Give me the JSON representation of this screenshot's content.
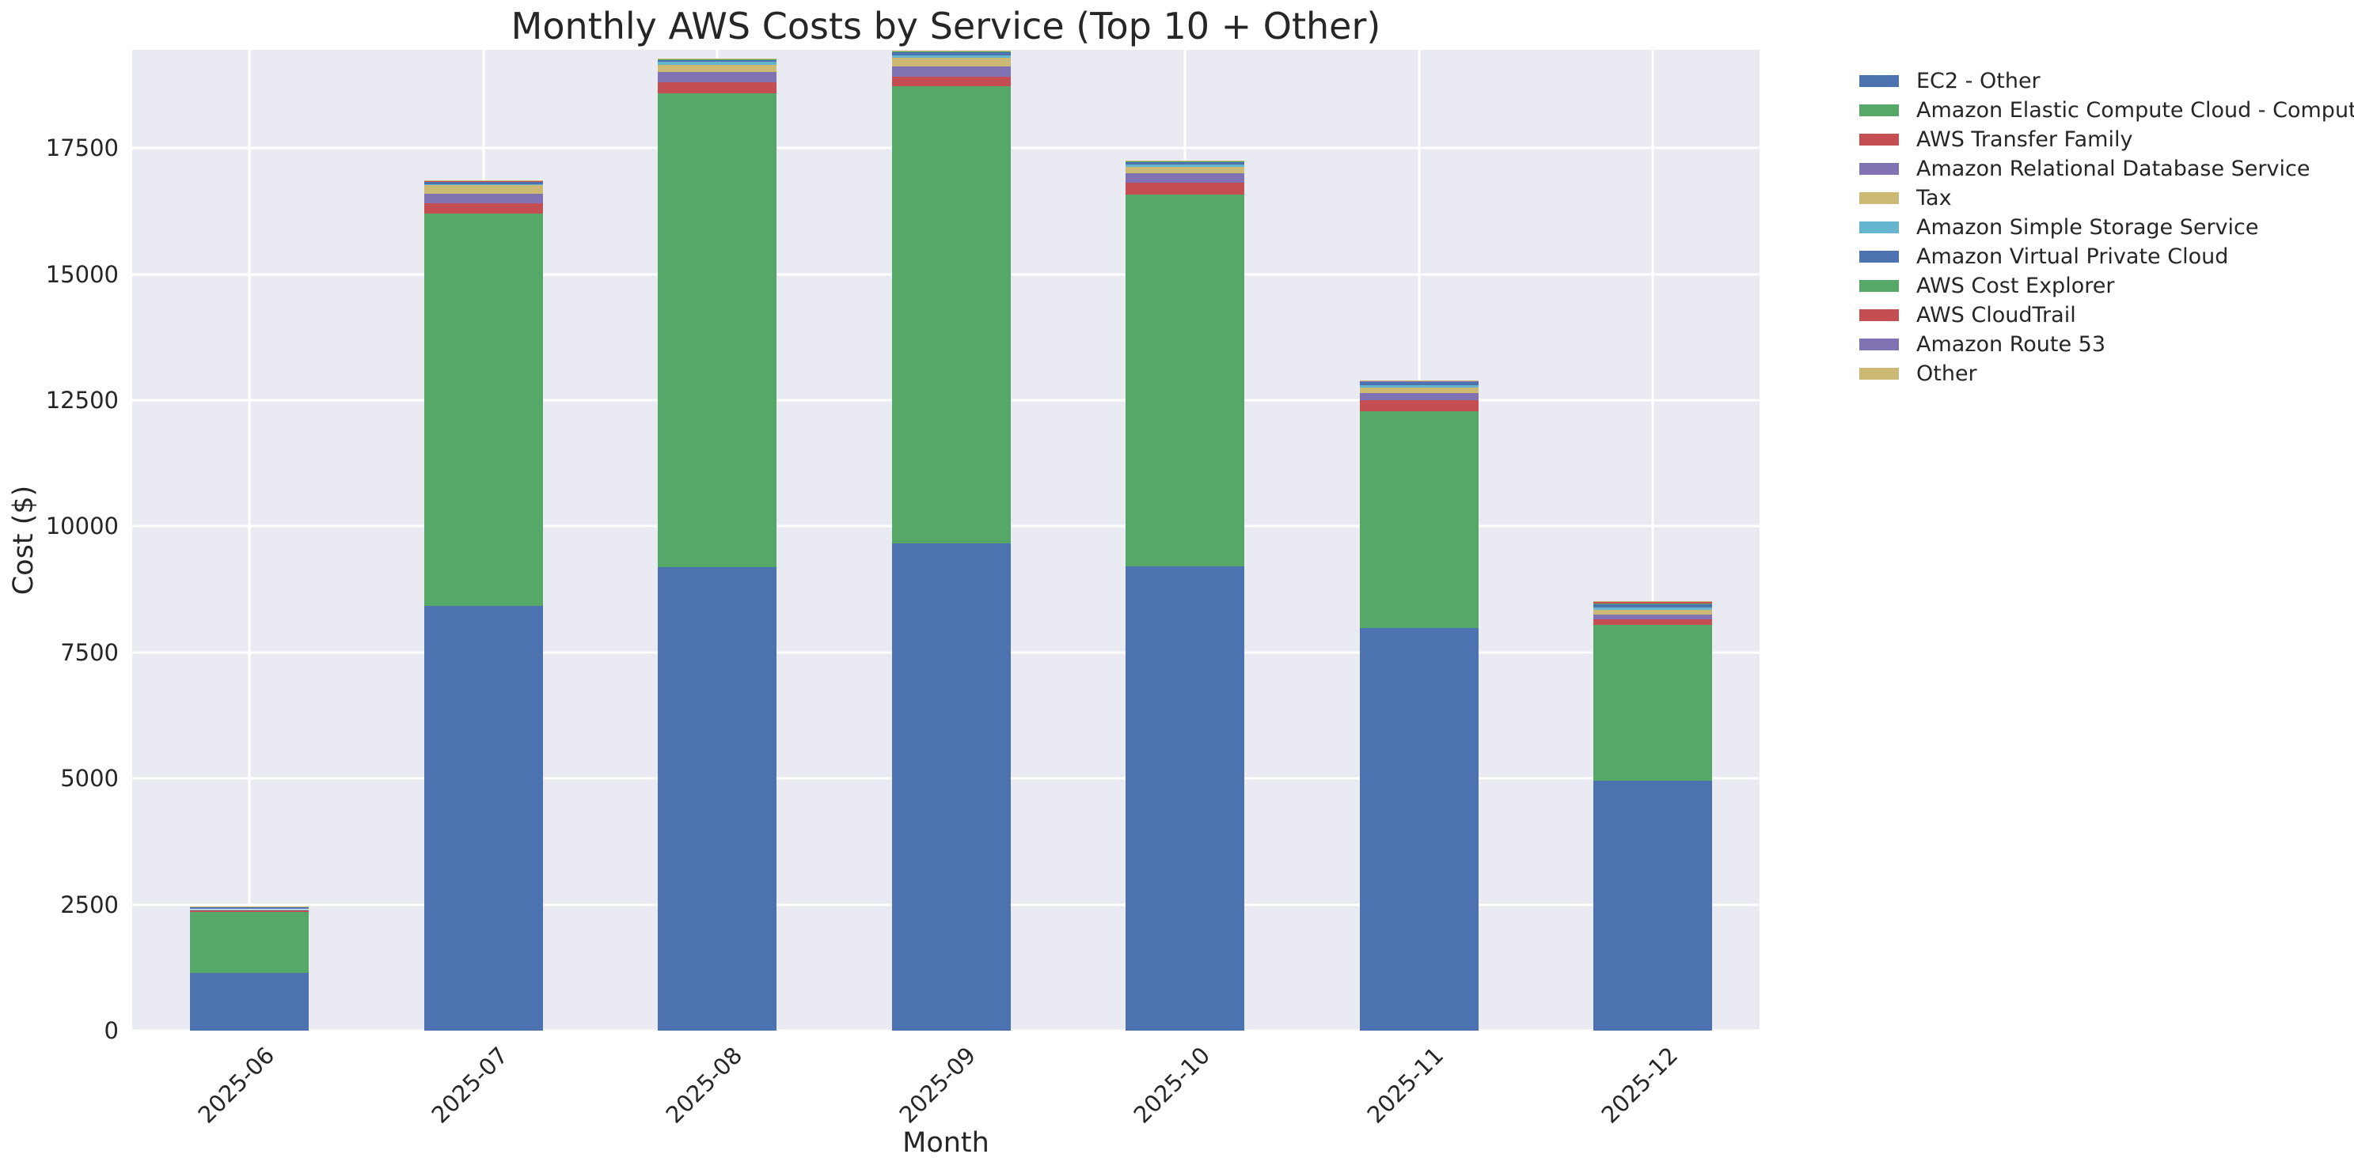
{
  "chart_data": {
    "type": "bar",
    "stacked": true,
    "title": "Monthly AWS Costs by Service (Top 10 + Other)",
    "xlabel": "Month",
    "ylabel": "Cost ($)",
    "categories": [
      "2025-06",
      "2025-07",
      "2025-08",
      "2025-09",
      "2025-10",
      "2025-11",
      "2025-12"
    ],
    "yticks": [
      0,
      2500,
      5000,
      7500,
      10000,
      12500,
      15000,
      17500
    ],
    "ytick_labels": [
      "0",
      "2500",
      "5000",
      "7500",
      "10000",
      "12500",
      "15000",
      "17500"
    ],
    "ylim": [
      0,
      19450
    ],
    "grid": true,
    "plot_background": "#eaeaf2",
    "gridline_color": "#ffffff",
    "legend_position": "outside-upper-right",
    "series": [
      {
        "name": "EC2 - Other",
        "color": "#4c72b0",
        "values": [
          1140,
          8420,
          9190,
          9670,
          9200,
          7980,
          4960
        ]
      },
      {
        "name": "Amazon Elastic Compute Cloud - Compute",
        "color": "#55a868",
        "values": [
          1215,
          7780,
          9400,
          9055,
          7375,
          4305,
          3090
        ]
      },
      {
        "name": "AWS Transfer Family",
        "color": "#c44e52",
        "values": [
          25,
          210,
          220,
          195,
          235,
          210,
          100
        ]
      },
      {
        "name": "Amazon Relational Database Service",
        "color": "#8172b3",
        "values": [
          15,
          185,
          205,
          200,
          195,
          150,
          95
        ]
      },
      {
        "name": "Tax",
        "color": "#ccb974",
        "values": [
          8,
          185,
          145,
          175,
          130,
          110,
          100
        ]
      },
      {
        "name": "Amazon Simple Storage Service",
        "color": "#64b5cd",
        "values": [
          5,
          10,
          55,
          45,
          40,
          50,
          40
        ]
      },
      {
        "name": "Amazon Virtual Private Cloud",
        "color": "#4c72b0",
        "values": [
          50,
          50,
          45,
          80,
          50,
          65,
          85
        ]
      },
      {
        "name": "AWS Cost Explorer",
        "color": "#55a868",
        "values": [
          3,
          5,
          5,
          5,
          20,
          5,
          5
        ]
      },
      {
        "name": "AWS CloudTrail",
        "color": "#c44e52",
        "values": [
          3,
          5,
          5,
          5,
          5,
          5,
          35
        ]
      },
      {
        "name": "Amazon Route 53",
        "color": "#8172b3",
        "values": [
          3,
          5,
          5,
          5,
          5,
          5,
          5
        ]
      },
      {
        "name": "Other",
        "color": "#ccb974",
        "values": [
          3,
          5,
          5,
          5,
          5,
          5,
          5
        ]
      }
    ],
    "bar_totals": [
      2470,
      16860,
      19280,
      19440,
      17260,
      12890,
      8520
    ]
  }
}
